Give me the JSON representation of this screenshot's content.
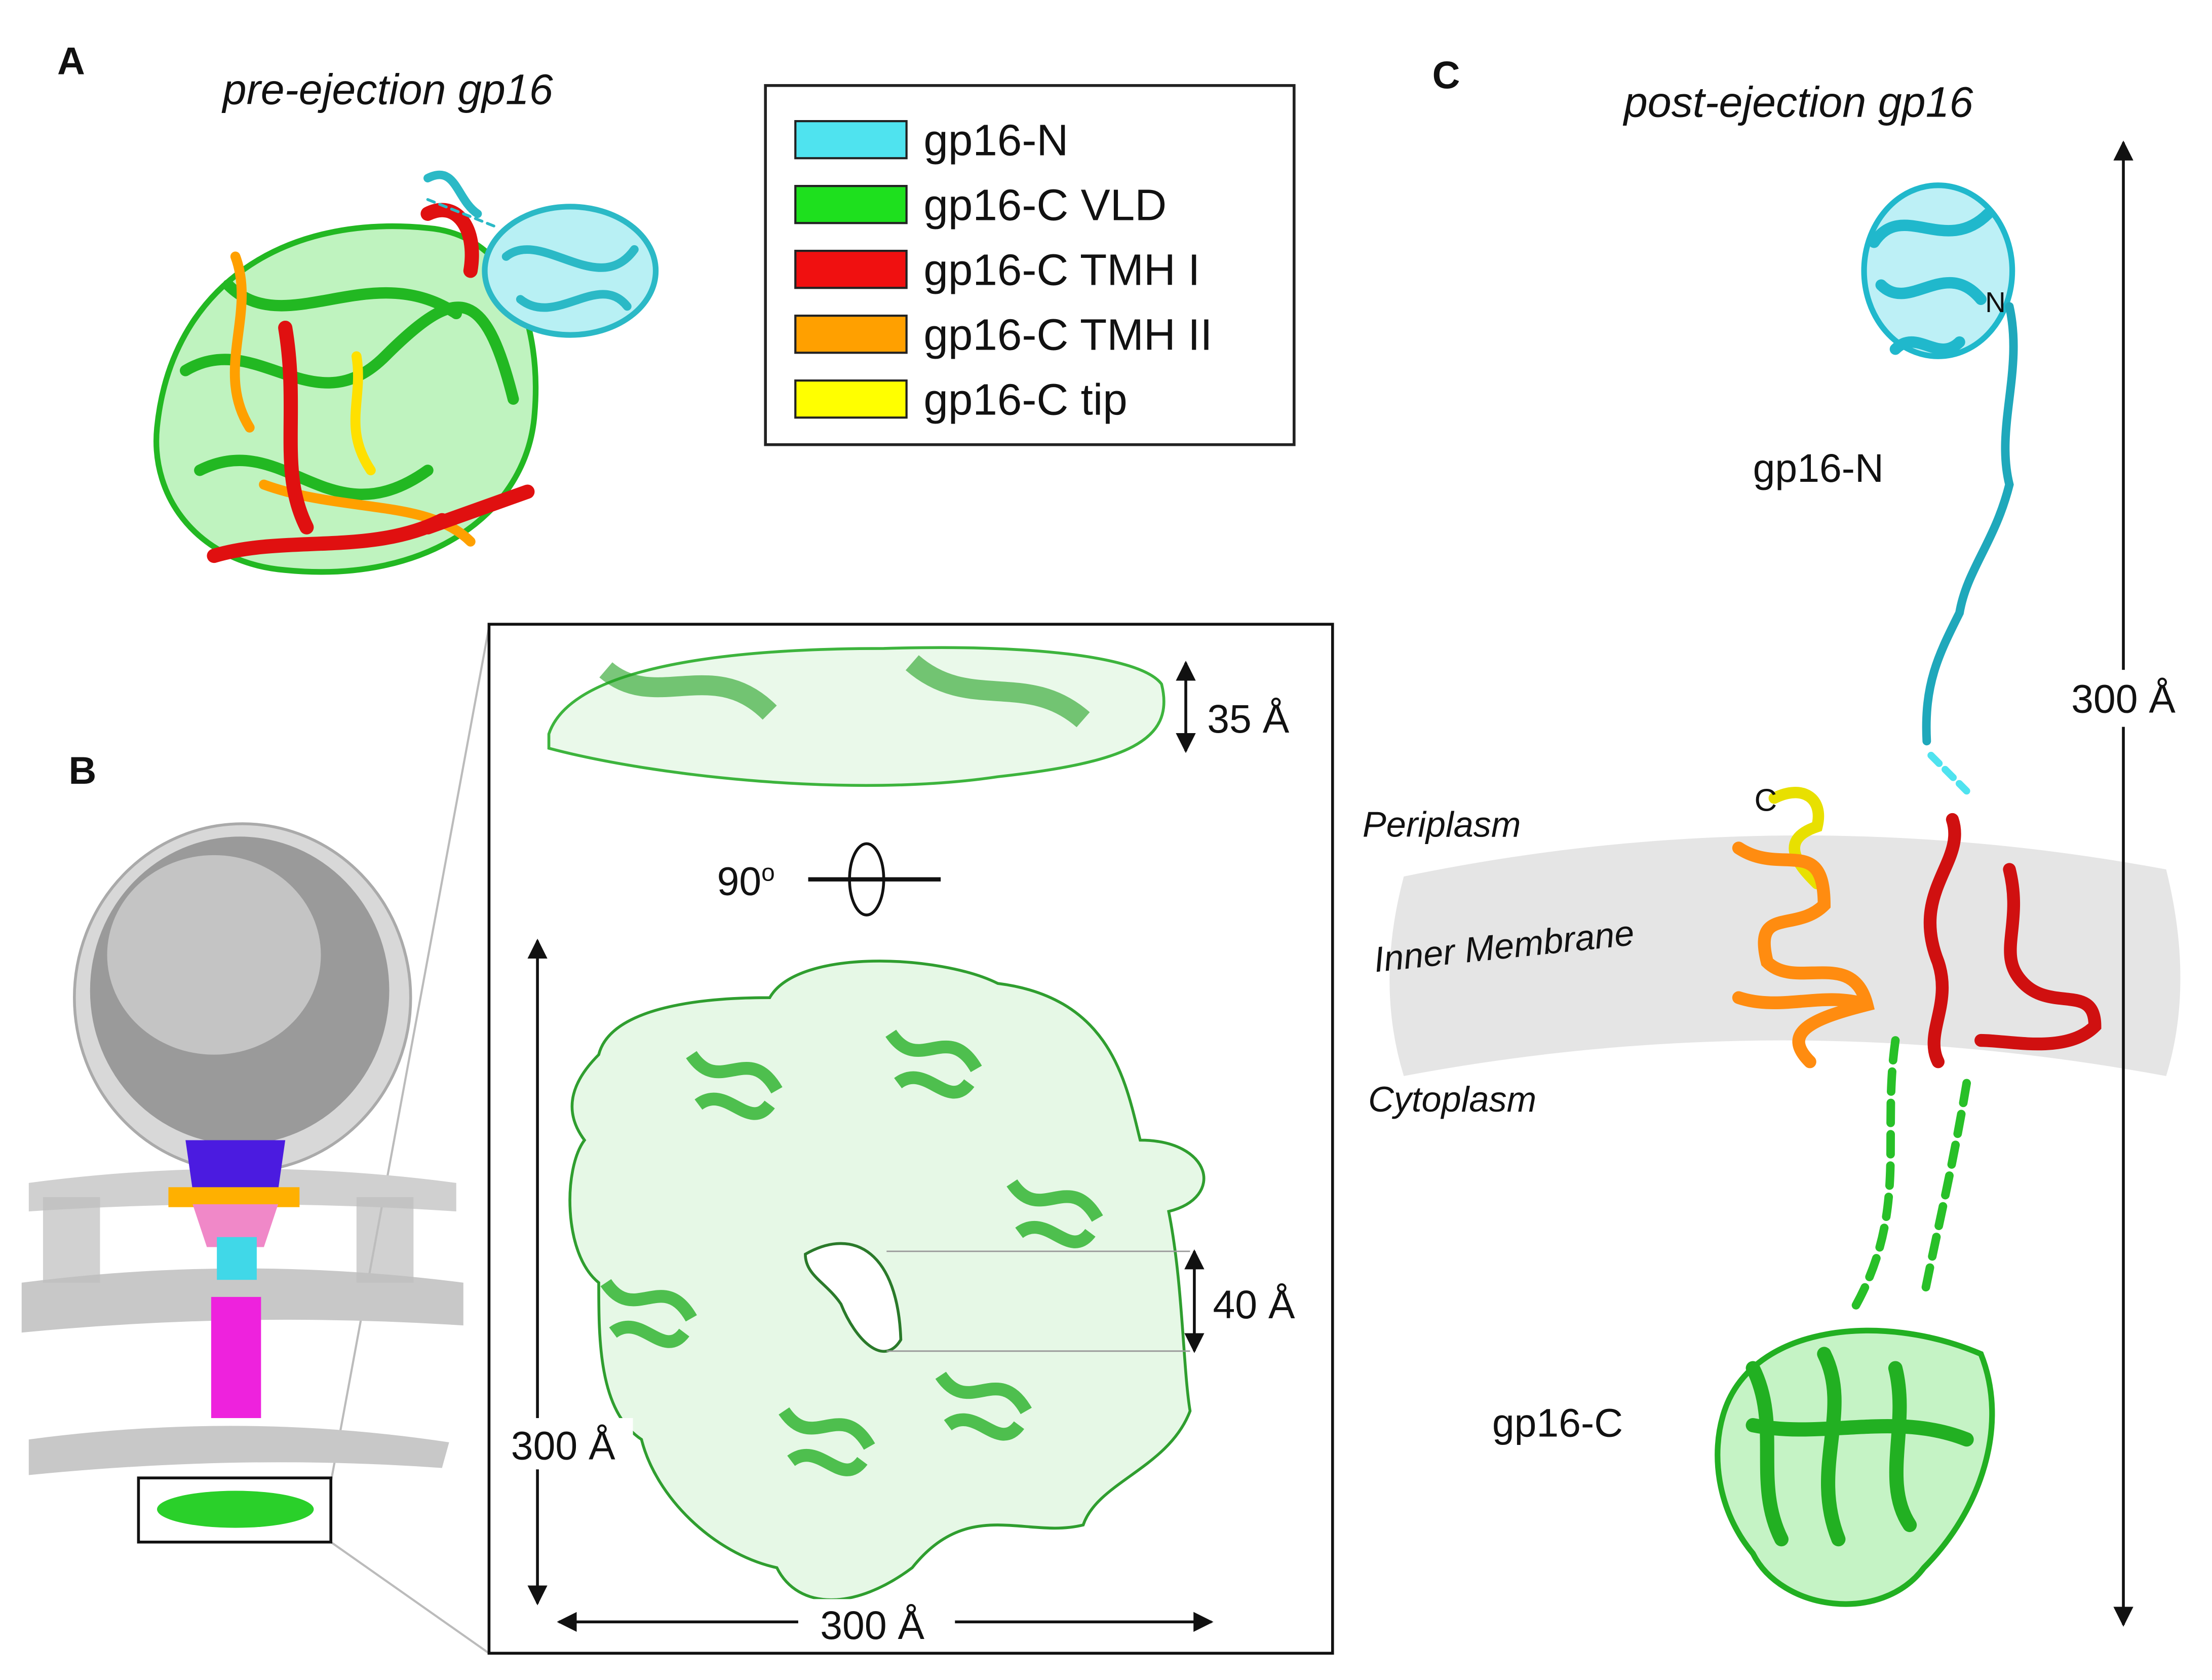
{
  "panel_a": {
    "label": "A",
    "title": "pre-ejection gp16"
  },
  "legend": {
    "items": [
      {
        "name": "gp16-N",
        "color": "#4fe3ef"
      },
      {
        "name": "gp16-C VLD",
        "color": "#1ee01e"
      },
      {
        "name": "gp16-C TMH I",
        "color": "#f01010"
      },
      {
        "name": "gp16-C TMH II",
        "color": "#ffa000"
      },
      {
        "name": "gp16-C tip",
        "color": "#ffff00"
      }
    ]
  },
  "panel_b": {
    "label": "B",
    "top_height": "35 Å",
    "rotation": "90",
    "rotation_sup": "o",
    "pore": "40 Å",
    "height": "300 Å",
    "width": "300 Å"
  },
  "panel_c": {
    "label": "C",
    "title": "post-ejection gp16",
    "n_term": "N",
    "c_term": "C",
    "gp16_n": "gp16-N",
    "periplasm": "Periplasm",
    "membrane": "Inner Membrane",
    "cytoplasm": "Cytoplasm",
    "gp16_c": "gp16-C",
    "length": "300 Å"
  }
}
